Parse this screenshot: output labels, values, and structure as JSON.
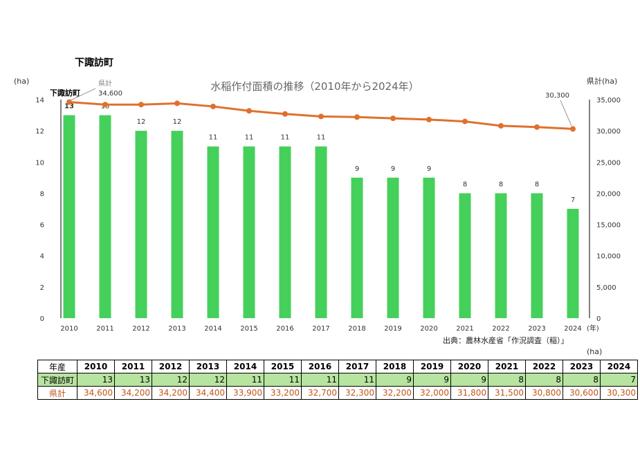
{
  "town_title": "下諏訪町",
  "source": "出典：農林水産省「作況調査（稲）」",
  "table_unit": "(ha)",
  "table": {
    "header_label": "年産",
    "row1_label": "下諏訪町",
    "row2_label": "県計",
    "row2_display": [
      "34,600",
      "34,200",
      "34,200",
      "34,400",
      "33,900",
      "33,200",
      "32,700",
      "32,300",
      "32,200",
      "32,000",
      "31,800",
      "31,500",
      "30,800",
      "30,600",
      "30,300"
    ]
  },
  "colors": {
    "bar": "#44d05a",
    "line": "#e0702c"
  },
  "chart_data": {
    "type": "bar+line",
    "title": "水稲作付面積の推移（2010年から2024年）",
    "ylabel": "(ha)",
    "y2label": "県計(ha)",
    "xlabel": "(年)",
    "categories": [
      "2010",
      "2011",
      "2012",
      "2013",
      "2014",
      "2015",
      "2016",
      "2017",
      "2018",
      "2019",
      "2020",
      "2021",
      "2022",
      "2023",
      "2024"
    ],
    "ylim": [
      0,
      14
    ],
    "yticks": [
      "0",
      "2",
      "4",
      "6",
      "8",
      "10",
      "12",
      "14"
    ],
    "y2lim": [
      0,
      35000
    ],
    "y2ticks": [
      "0",
      "5,000",
      "10,000",
      "15,000",
      "20,000",
      "25,000",
      "30,000",
      "35,000"
    ],
    "series": [
      {
        "name": "下諏訪町",
        "type": "bar",
        "axis": "left",
        "values": [
          13,
          13,
          12,
          12,
          11,
          11,
          11,
          11,
          9,
          9,
          9,
          8,
          8,
          8,
          7
        ]
      },
      {
        "name": "県計",
        "type": "line",
        "axis": "right",
        "values": [
          34600,
          34200,
          34200,
          34400,
          33900,
          33200,
          32700,
          32300,
          32200,
          32000,
          31800,
          31500,
          30800,
          30600,
          30300
        ]
      }
    ],
    "annotations": [
      {
        "text": "県計",
        "value": "34,600"
      },
      {
        "text": "30,300"
      }
    ]
  }
}
